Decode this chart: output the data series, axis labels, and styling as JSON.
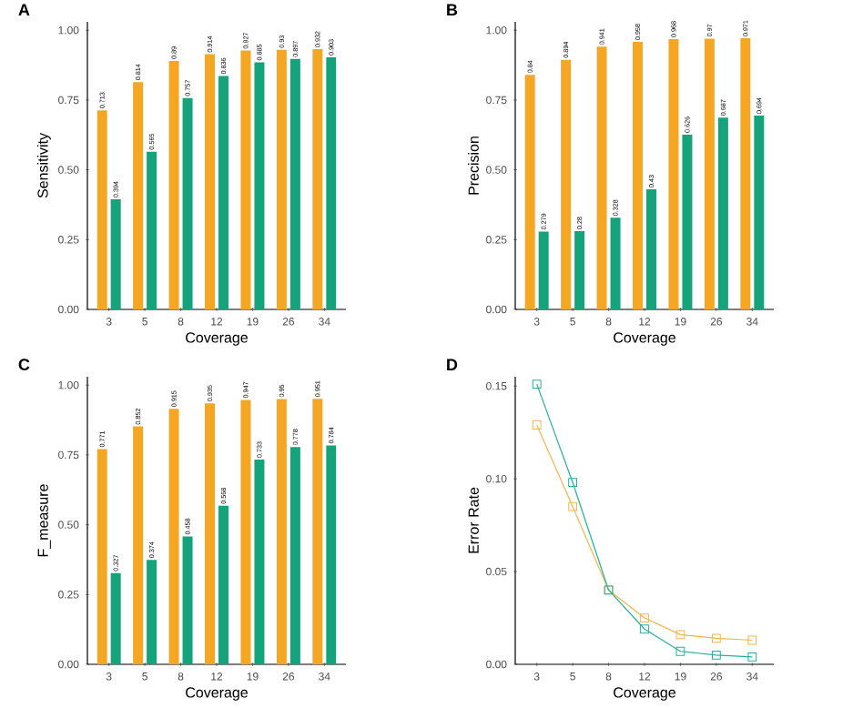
{
  "chart_data": [
    {
      "type": "bar",
      "title": "A",
      "xlabel": "Coverage",
      "ylabel": "Sensitivity",
      "categories": [
        "3",
        "5",
        "8",
        "12",
        "19",
        "26",
        "34"
      ],
      "data_labels": true,
      "ylim": [
        0,
        1.03
      ],
      "yticks": [
        {
          "value": 0,
          "label": "0.00"
        },
        {
          "value": 0.25,
          "label": "0.25"
        },
        {
          "value": 0.5,
          "label": "0.50"
        },
        {
          "value": 0.75,
          "label": "0.75"
        },
        {
          "value": 1,
          "label": "1.00"
        }
      ],
      "series": [
        {
          "color": "#f5a623",
          "values": [
            0.713,
            0.814,
            0.89,
            0.914,
            0.927,
            0.93,
            0.932
          ]
        },
        {
          "color": "#14a37b",
          "values": [
            0.394,
            0.565,
            0.757,
            0.836,
            0.885,
            0.897,
            0.903
          ]
        }
      ]
    },
    {
      "type": "bar",
      "title": "B",
      "xlabel": "Coverage",
      "ylabel": "Precision",
      "categories": [
        "3",
        "5",
        "8",
        "12",
        "19",
        "26",
        "34"
      ],
      "data_labels": true,
      "ylim": [
        0,
        1.03
      ],
      "yticks": [
        {
          "value": 0,
          "label": "0.00"
        },
        {
          "value": 0.25,
          "label": "0.25"
        },
        {
          "value": 0.5,
          "label": "0.50"
        },
        {
          "value": 0.75,
          "label": "0.75"
        },
        {
          "value": 1,
          "label": "1.00"
        }
      ],
      "series": [
        {
          "color": "#f5a623",
          "values": [
            0.84,
            0.894,
            0.941,
            0.958,
            0.968,
            0.97,
            0.971
          ]
        },
        {
          "color": "#14a37b",
          "values": [
            0.279,
            0.28,
            0.328,
            0.43,
            0.626,
            0.687,
            0.694
          ]
        }
      ]
    },
    {
      "type": "bar",
      "title": "C",
      "xlabel": "Coverage",
      "ylabel": "F_measure",
      "categories": [
        "3",
        "5",
        "8",
        "12",
        "19",
        "26",
        "34"
      ],
      "data_labels": true,
      "ylim": [
        0,
        1.03
      ],
      "yticks": [
        {
          "value": 0,
          "label": "0.00"
        },
        {
          "value": 0.25,
          "label": "0.25"
        },
        {
          "value": 0.5,
          "label": "0.50"
        },
        {
          "value": 0.75,
          "label": "0.75"
        },
        {
          "value": 1,
          "label": "1.00"
        }
      ],
      "series": [
        {
          "color": "#f5a623",
          "values": [
            0.771,
            0.852,
            0.915,
            0.935,
            0.947,
            0.95,
            0.951
          ]
        },
        {
          "color": "#14a37b",
          "values": [
            0.327,
            0.374,
            0.458,
            0.568,
            0.733,
            0.778,
            0.784
          ]
        }
      ]
    },
    {
      "type": "line",
      "title": "D",
      "xlabel": "Coverage",
      "ylabel": "Error Rate",
      "categories": [
        "3",
        "5",
        "8",
        "12",
        "19",
        "26",
        "34"
      ],
      "marker": "square",
      "ylim": [
        0,
        0.155
      ],
      "yticks": [
        {
          "value": 0,
          "label": "0.00"
        },
        {
          "value": 0.05,
          "label": "0.05"
        },
        {
          "value": 0.1,
          "label": "0.10"
        },
        {
          "value": 0.15,
          "label": "0.15"
        }
      ],
      "series": [
        {
          "color": "#f5b54a",
          "values": [
            0.129,
            0.085,
            0.04,
            0.025,
            0.016,
            0.014,
            0.013
          ]
        },
        {
          "color": "#22b0a0",
          "values": [
            0.151,
            0.098,
            0.04,
            0.019,
            0.007,
            0.005,
            0.004
          ]
        }
      ]
    }
  ]
}
